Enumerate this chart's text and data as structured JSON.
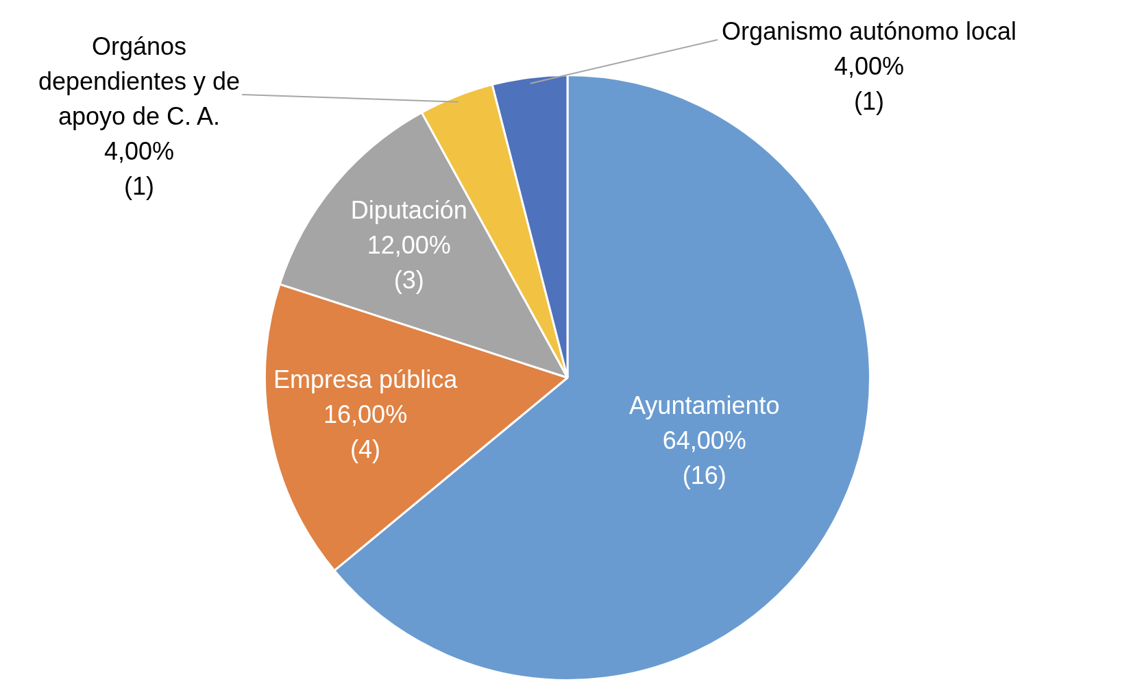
{
  "chart_data": {
    "type": "pie",
    "categories": [
      "Ayuntamiento",
      "Empresa pública",
      "Diputación",
      "Orgános dependientes y de apoyo de C. A.",
      "Organismo autónomo local"
    ],
    "values": [
      64,
      16,
      12,
      4,
      4
    ],
    "value_labels": [
      "64,00%\n(16)",
      "16,00%\n(4)",
      "12,00%\n(3)",
      "4,00%\n(1)",
      "4,00%\n(1)"
    ],
    "colors": [
      "#6a9bd0",
      "#df8244",
      "#a5a5a5",
      "#f2c242",
      "#4e72bc"
    ],
    "legend": false
  }
}
